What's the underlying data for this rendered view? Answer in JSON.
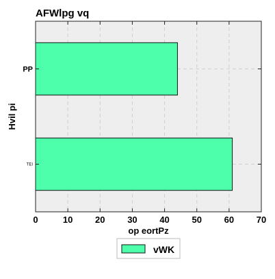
{
  "chart_data": {
    "type": "bar",
    "orientation": "horizontal",
    "title": "AFWlpg vq",
    "xlabel": "op eortPz",
    "ylabel": "Hvil pi",
    "categories": [
      "PP",
      "TEI"
    ],
    "series": [
      {
        "name": "vWK",
        "values": [
          44,
          61
        ]
      }
    ],
    "xlim": [
      0,
      70
    ],
    "xticks": [
      0,
      10,
      20,
      30,
      40,
      50,
      60,
      70
    ],
    "grid": true,
    "legend_position": "bottom-center",
    "colors": {
      "bar_fill": "#4dffaa",
      "bar_edge": "#111111",
      "plot_background": "#eeeeee",
      "grid": "#cfcfcf",
      "frame": "#222222"
    }
  }
}
